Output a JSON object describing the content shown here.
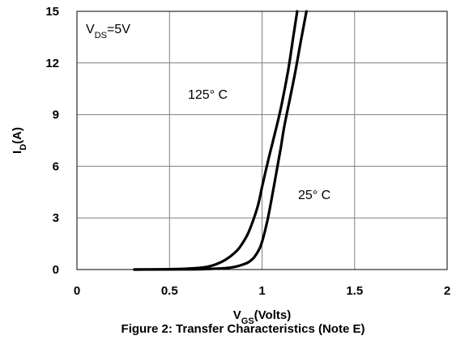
{
  "chart_data": {
    "type": "line",
    "title": "Figure 2: Transfer Characteristics (Note E)",
    "xlabel": {
      "main": "V",
      "sub": "GS",
      "rest": "(Volts)"
    },
    "ylabel": {
      "main": "I",
      "sub": "D",
      "rest": "(A)"
    },
    "xlim": [
      0,
      2
    ],
    "ylim": [
      0,
      15
    ],
    "xticks": [
      0,
      0.5,
      1,
      1.5,
      2
    ],
    "xtick_labels": [
      "0",
      "0.5",
      "1",
      "1.5",
      "2"
    ],
    "yticks": [
      0,
      3,
      6,
      9,
      12,
      15
    ],
    "ytick_labels": [
      "0",
      "3",
      "6",
      "9",
      "12",
      "15"
    ],
    "grid": true,
    "annotations": [
      {
        "main": "V",
        "sub": "DS",
        "rest": "=5V"
      },
      {
        "text": "125° C"
      },
      {
        "text": "25° C"
      }
    ],
    "series": [
      {
        "name": "125° C",
        "x": [
          0.31,
          0.5,
          0.6,
          0.7,
          0.75,
          0.8,
          0.85,
          0.88,
          0.92,
          0.95,
          0.98,
          1.0,
          1.03,
          1.06,
          1.1,
          1.14,
          1.17,
          1.19
        ],
        "y": [
          0,
          0.02,
          0.05,
          0.15,
          0.3,
          0.55,
          0.95,
          1.3,
          2.0,
          2.8,
          3.8,
          4.8,
          6.2,
          7.5,
          9.3,
          11.5,
          13.6,
          15
        ]
      },
      {
        "name": "25° C",
        "x": [
          0.31,
          0.6,
          0.7,
          0.8,
          0.85,
          0.9,
          0.93,
          0.96,
          0.99,
          1.01,
          1.03,
          1.05,
          1.08,
          1.1,
          1.12,
          1.15,
          1.18,
          1.21,
          1.24
        ],
        "y": [
          0,
          0.01,
          0.03,
          0.08,
          0.15,
          0.3,
          0.45,
          0.75,
          1.3,
          2.0,
          2.9,
          4.0,
          5.8,
          7.0,
          8.3,
          9.9,
          11.5,
          13.3,
          15
        ]
      }
    ]
  }
}
